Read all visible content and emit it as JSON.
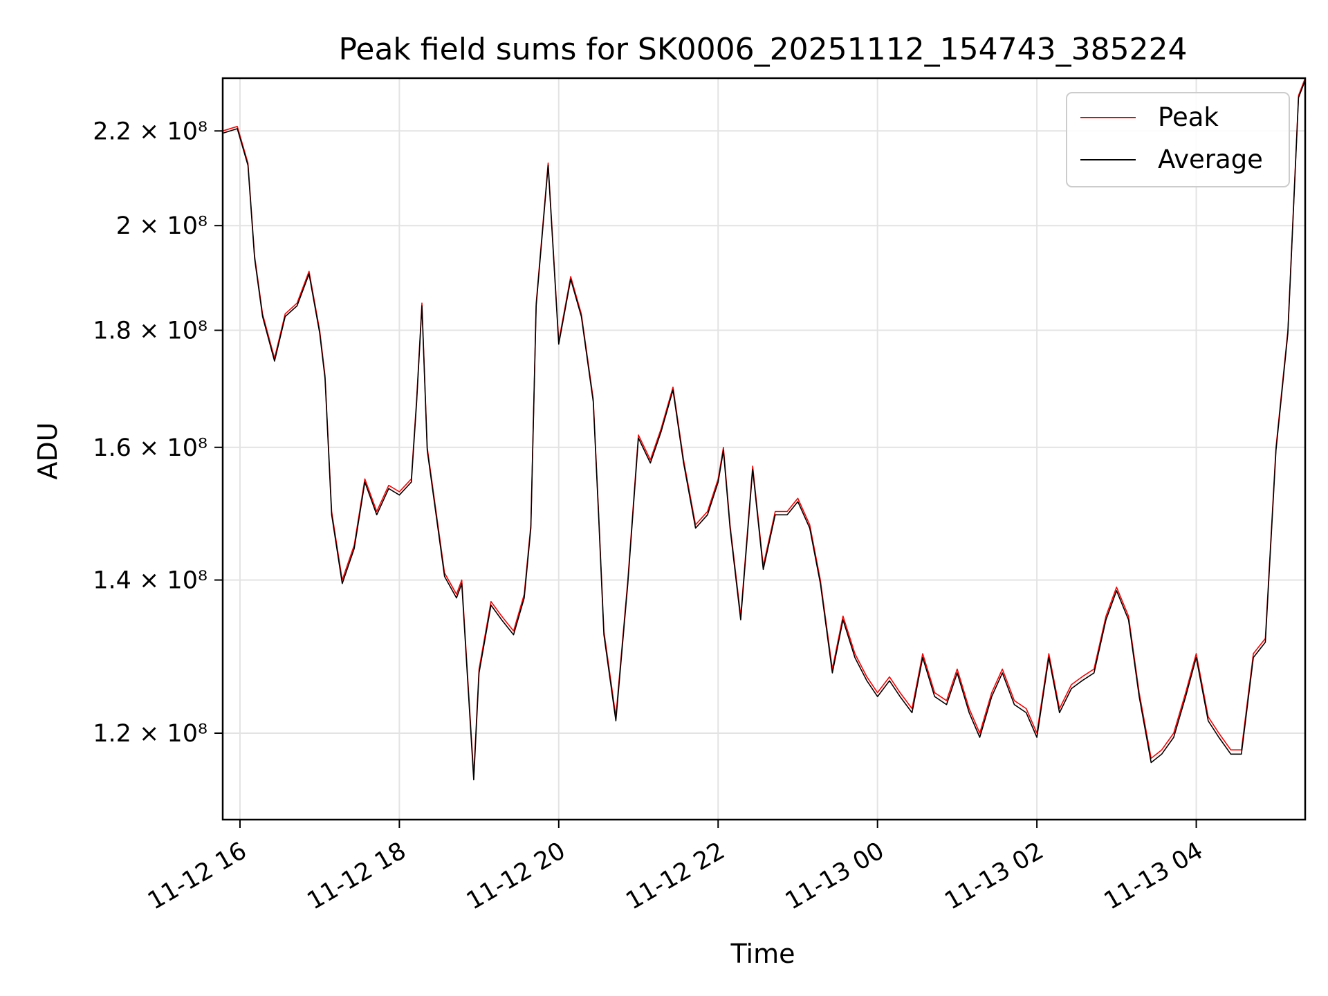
{
  "chart_data": {
    "type": "line",
    "title": "Peak field sums for SK0006_20251112_154743_385224",
    "xlabel": "Time",
    "ylabel": "ADU",
    "xlim": [
      "2025-11-12 15:47",
      "2025-11-13 05:22"
    ],
    "ylim": [
      110000000,
      232000000
    ],
    "y_scale": "log",
    "grid": true,
    "legend": "top-right",
    "x_ticks": [
      "11-12 16",
      "11-12 18",
      "11-12 20",
      "11-12 22",
      "11-13 00",
      "11-13 02",
      "11-13 04"
    ],
    "y_ticks": [
      {
        "value": 120000000,
        "label": "1.2 × 10⁸"
      },
      {
        "value": 140000000,
        "label": "1.4 × 10⁸"
      },
      {
        "value": 160000000,
        "label": "1.6 × 10⁸"
      },
      {
        "value": 180000000,
        "label": "1.8 × 10⁸"
      },
      {
        "value": 200000000,
        "label": "2 × 10⁸"
      },
      {
        "value": 220000000,
        "label": "2.2 × 10⁸"
      }
    ],
    "x": [
      "2025-11-12 15:47",
      "2025-11-12 15:58",
      "2025-11-12 16:06",
      "2025-11-12 16:11",
      "2025-11-12 16:17",
      "2025-11-12 16:26",
      "2025-11-12 16:34",
      "2025-11-12 16:43",
      "2025-11-12 16:52",
      "2025-11-12 17:00",
      "2025-11-12 17:04",
      "2025-11-12 17:09",
      "2025-11-12 17:17",
      "2025-11-12 17:26",
      "2025-11-12 17:34",
      "2025-11-12 17:43",
      "2025-11-12 17:52",
      "2025-11-12 18:00",
      "2025-11-12 18:09",
      "2025-11-12 18:13",
      "2025-11-12 18:17",
      "2025-11-12 18:21",
      "2025-11-12 18:34",
      "2025-11-12 18:43",
      "2025-11-12 18:47",
      "2025-11-12 18:56",
      "2025-11-12 19:00",
      "2025-11-12 19:09",
      "2025-11-12 19:17",
      "2025-11-12 19:26",
      "2025-11-12 19:34",
      "2025-11-12 19:39",
      "2025-11-12 19:43",
      "2025-11-12 19:52",
      "2025-11-12 20:00",
      "2025-11-12 20:09",
      "2025-11-12 20:17",
      "2025-11-12 20:26",
      "2025-11-12 20:30",
      "2025-11-12 20:34",
      "2025-11-12 20:43",
      "2025-11-12 20:52",
      "2025-11-12 21:00",
      "2025-11-12 21:09",
      "2025-11-12 21:17",
      "2025-11-12 21:26",
      "2025-11-12 21:34",
      "2025-11-12 21:43",
      "2025-11-12 21:52",
      "2025-11-12 22:00",
      "2025-11-12 22:04",
      "2025-11-12 22:09",
      "2025-11-12 22:17",
      "2025-11-12 22:26",
      "2025-11-12 22:34",
      "2025-11-12 22:43",
      "2025-11-12 22:52",
      "2025-11-12 23:00",
      "2025-11-12 23:09",
      "2025-11-12 23:17",
      "2025-11-12 23:26",
      "2025-11-12 23:34",
      "2025-11-12 23:43",
      "2025-11-12 23:52",
      "2025-11-13 00:00",
      "2025-11-13 00:09",
      "2025-11-13 00:17",
      "2025-11-13 00:26",
      "2025-11-13 00:34",
      "2025-11-13 00:43",
      "2025-11-13 00:52",
      "2025-11-13 01:00",
      "2025-11-13 01:09",
      "2025-11-13 01:17",
      "2025-11-13 01:26",
      "2025-11-13 01:34",
      "2025-11-13 01:43",
      "2025-11-13 01:52",
      "2025-11-13 02:00",
      "2025-11-13 02:09",
      "2025-11-13 02:17",
      "2025-11-13 02:26",
      "2025-11-13 02:34",
      "2025-11-13 02:43",
      "2025-11-13 02:52",
      "2025-11-13 03:00",
      "2025-11-13 03:09",
      "2025-11-13 03:17",
      "2025-11-13 03:26",
      "2025-11-13 03:34",
      "2025-11-13 03:43",
      "2025-11-13 03:52",
      "2025-11-13 04:00",
      "2025-11-13 04:09",
      "2025-11-13 04:17",
      "2025-11-13 04:26",
      "2025-11-13 04:34",
      "2025-11-13 04:43",
      "2025-11-13 04:52",
      "2025-11-13 05:00",
      "2025-11-13 05:09",
      "2025-11-13 05:17",
      "2025-11-13 05:22"
    ],
    "series": [
      {
        "name": "Peak",
        "color": "#ff0000",
        "values": [
          220000000,
          221000000,
          213000000,
          194000000,
          183000000,
          175000000,
          183000000,
          185000000,
          191000000,
          180000000,
          172000000,
          150000000,
          140000000,
          145000000,
          155000000,
          150000000,
          154000000,
          153000000,
          155000000,
          168000000,
          185000000,
          160000000,
          141000000,
          138000000,
          140000000,
          115000000,
          128000000,
          137000000,
          135000000,
          133000000,
          138000000,
          148000000,
          185000000,
          213000000,
          178000000,
          190000000,
          183000000,
          168000000,
          150000000,
          133000000,
          122000000,
          140000000,
          162000000,
          158000000,
          163000000,
          170000000,
          158000000,
          148000000,
          150000000,
          155000000,
          160000000,
          148000000,
          135000000,
          157000000,
          142000000,
          150000000,
          150000000,
          152000000,
          148000000,
          140000000,
          128000000,
          135000000,
          130000000,
          127000000,
          125000000,
          127000000,
          125000000,
          123000000,
          130000000,
          125000000,
          124000000,
          128000000,
          123000000,
          120000000,
          125000000,
          128000000,
          124000000,
          123000000,
          120000000,
          130000000,
          123000000,
          126000000,
          127000000,
          128000000,
          135000000,
          139000000,
          135000000,
          125000000,
          117000000,
          118000000,
          120000000,
          125000000,
          130000000,
          122000000,
          120000000,
          118000000,
          118000000,
          130000000,
          132000000,
          160000000,
          180000000,
          228000000,
          232000000
        ]
      },
      {
        "name": "Average",
        "color": "#000000",
        "values": [
          219500000,
          220500000,
          212500000,
          193500000,
          182500000,
          174500000,
          182500000,
          184500000,
          190500000,
          179500000,
          171500000,
          149500000,
          139500000,
          144500000,
          154500000,
          149500000,
          153500000,
          152500000,
          154500000,
          167500000,
          184500000,
          159500000,
          140500000,
          137500000,
          139500000,
          114500000,
          127500000,
          136500000,
          134500000,
          132500000,
          137500000,
          147500000,
          184500000,
          212500000,
          177500000,
          189500000,
          182500000,
          167500000,
          149500000,
          132500000,
          121500000,
          139500000,
          161500000,
          157500000,
          162500000,
          169500000,
          157500000,
          147500000,
          149500000,
          154500000,
          159500000,
          147500000,
          134500000,
          156500000,
          141500000,
          149500000,
          149500000,
          151500000,
          147500000,
          139500000,
          127500000,
          134500000,
          129500000,
          126500000,
          124500000,
          126500000,
          124500000,
          122500000,
          129500000,
          124500000,
          123500000,
          127500000,
          122500000,
          119500000,
          124500000,
          127500000,
          123500000,
          122500000,
          119500000,
          129500000,
          122500000,
          125500000,
          126500000,
          127500000,
          134500000,
          138500000,
          134500000,
          124500000,
          116500000,
          117500000,
          119500000,
          124500000,
          129500000,
          121500000,
          119500000,
          117500000,
          117500000,
          129500000,
          131500000,
          159500000,
          179500000,
          227500000,
          231500000
        ]
      }
    ]
  }
}
